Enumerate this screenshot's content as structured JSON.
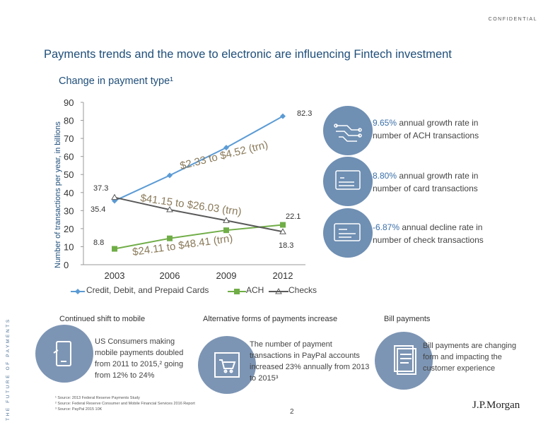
{
  "header": {
    "confidential": "CONFIDENTIAL",
    "title": "Payments trends and the move to electronic are influencing Fintech investment",
    "subtitle": "Change in payment type¹",
    "side_label": "THE FUTURE OF PAYMENTS"
  },
  "chart_data": {
    "type": "line",
    "ylabel": "Number of transactions per year, in billions",
    "x": [
      "2003",
      "2006",
      "2009",
      "2012"
    ],
    "y_ticks": [
      "90",
      "80",
      "70",
      "60",
      "50",
      "40",
      "30",
      "20",
      "10",
      "0"
    ],
    "ylim": [
      0,
      90
    ],
    "series": [
      {
        "name": "Credit, Debit, and Prepaid Cards",
        "values": [
          35.4,
          49.5,
          64.9,
          82.3
        ],
        "color": "#5b9bd5",
        "marker": "diamond"
      },
      {
        "name": "ACH",
        "values": [
          8.8,
          14.6,
          19.1,
          22.1
        ],
        "color": "#70ad47",
        "marker": "square"
      },
      {
        "name": "Checks",
        "values": [
          37.3,
          30.5,
          24.5,
          18.3
        ],
        "color": "#595959",
        "marker": "triangle"
      }
    ],
    "data_labels": [
      {
        "text": "82.3"
      },
      {
        "text": "37.3"
      },
      {
        "text": "35.4"
      },
      {
        "text": "22.1"
      },
      {
        "text": "8.8"
      },
      {
        "text": "18.3"
      }
    ],
    "annotations": [
      {
        "text": "$2.33 to $4.52 (trn)"
      },
      {
        "text": "$41.15 to $26.03 (trn)"
      },
      {
        "text": "$24.11 to $48.41 (trn)"
      }
    ],
    "legend_position": "bottom"
  },
  "stats": [
    {
      "highlight": "9.65%",
      "text": " annual growth rate in number of ACH transactions",
      "icon": "circuit-icon"
    },
    {
      "highlight": "8.80%",
      "text": " annual growth rate in number of card transactions",
      "icon": "card-icon"
    },
    {
      "highlight": "-6.87%",
      "text": " annual decline rate in number of check transactions",
      "icon": "check-icon"
    }
  ],
  "sections": {
    "mobile": {
      "title": "Continued shift to mobile",
      "text": "US Consumers making mobile payments doubled from 2011 to 2015,² going from 12% to 24%",
      "icon": "mobile-payment-icon"
    },
    "alternative": {
      "title": "Alternative forms of payments increase",
      "text": "The number of payment transactions in PayPal accounts increased 23% annually from 2013 to 2015³",
      "icon": "cart-icon"
    },
    "bill": {
      "title": "Bill payments",
      "text": "Bill payments are changing form and impacting the customer experience",
      "icon": "document-icon"
    }
  },
  "footnotes": [
    "¹ Source: 2013 Federal Reserve Payments Study",
    "² Source: Federal Reserve Consumer and Mobile Financial Services 2016 Report",
    "³ Source: PayPal 2015 10K"
  ],
  "page_number": "2",
  "logo": "J.P.Morgan"
}
